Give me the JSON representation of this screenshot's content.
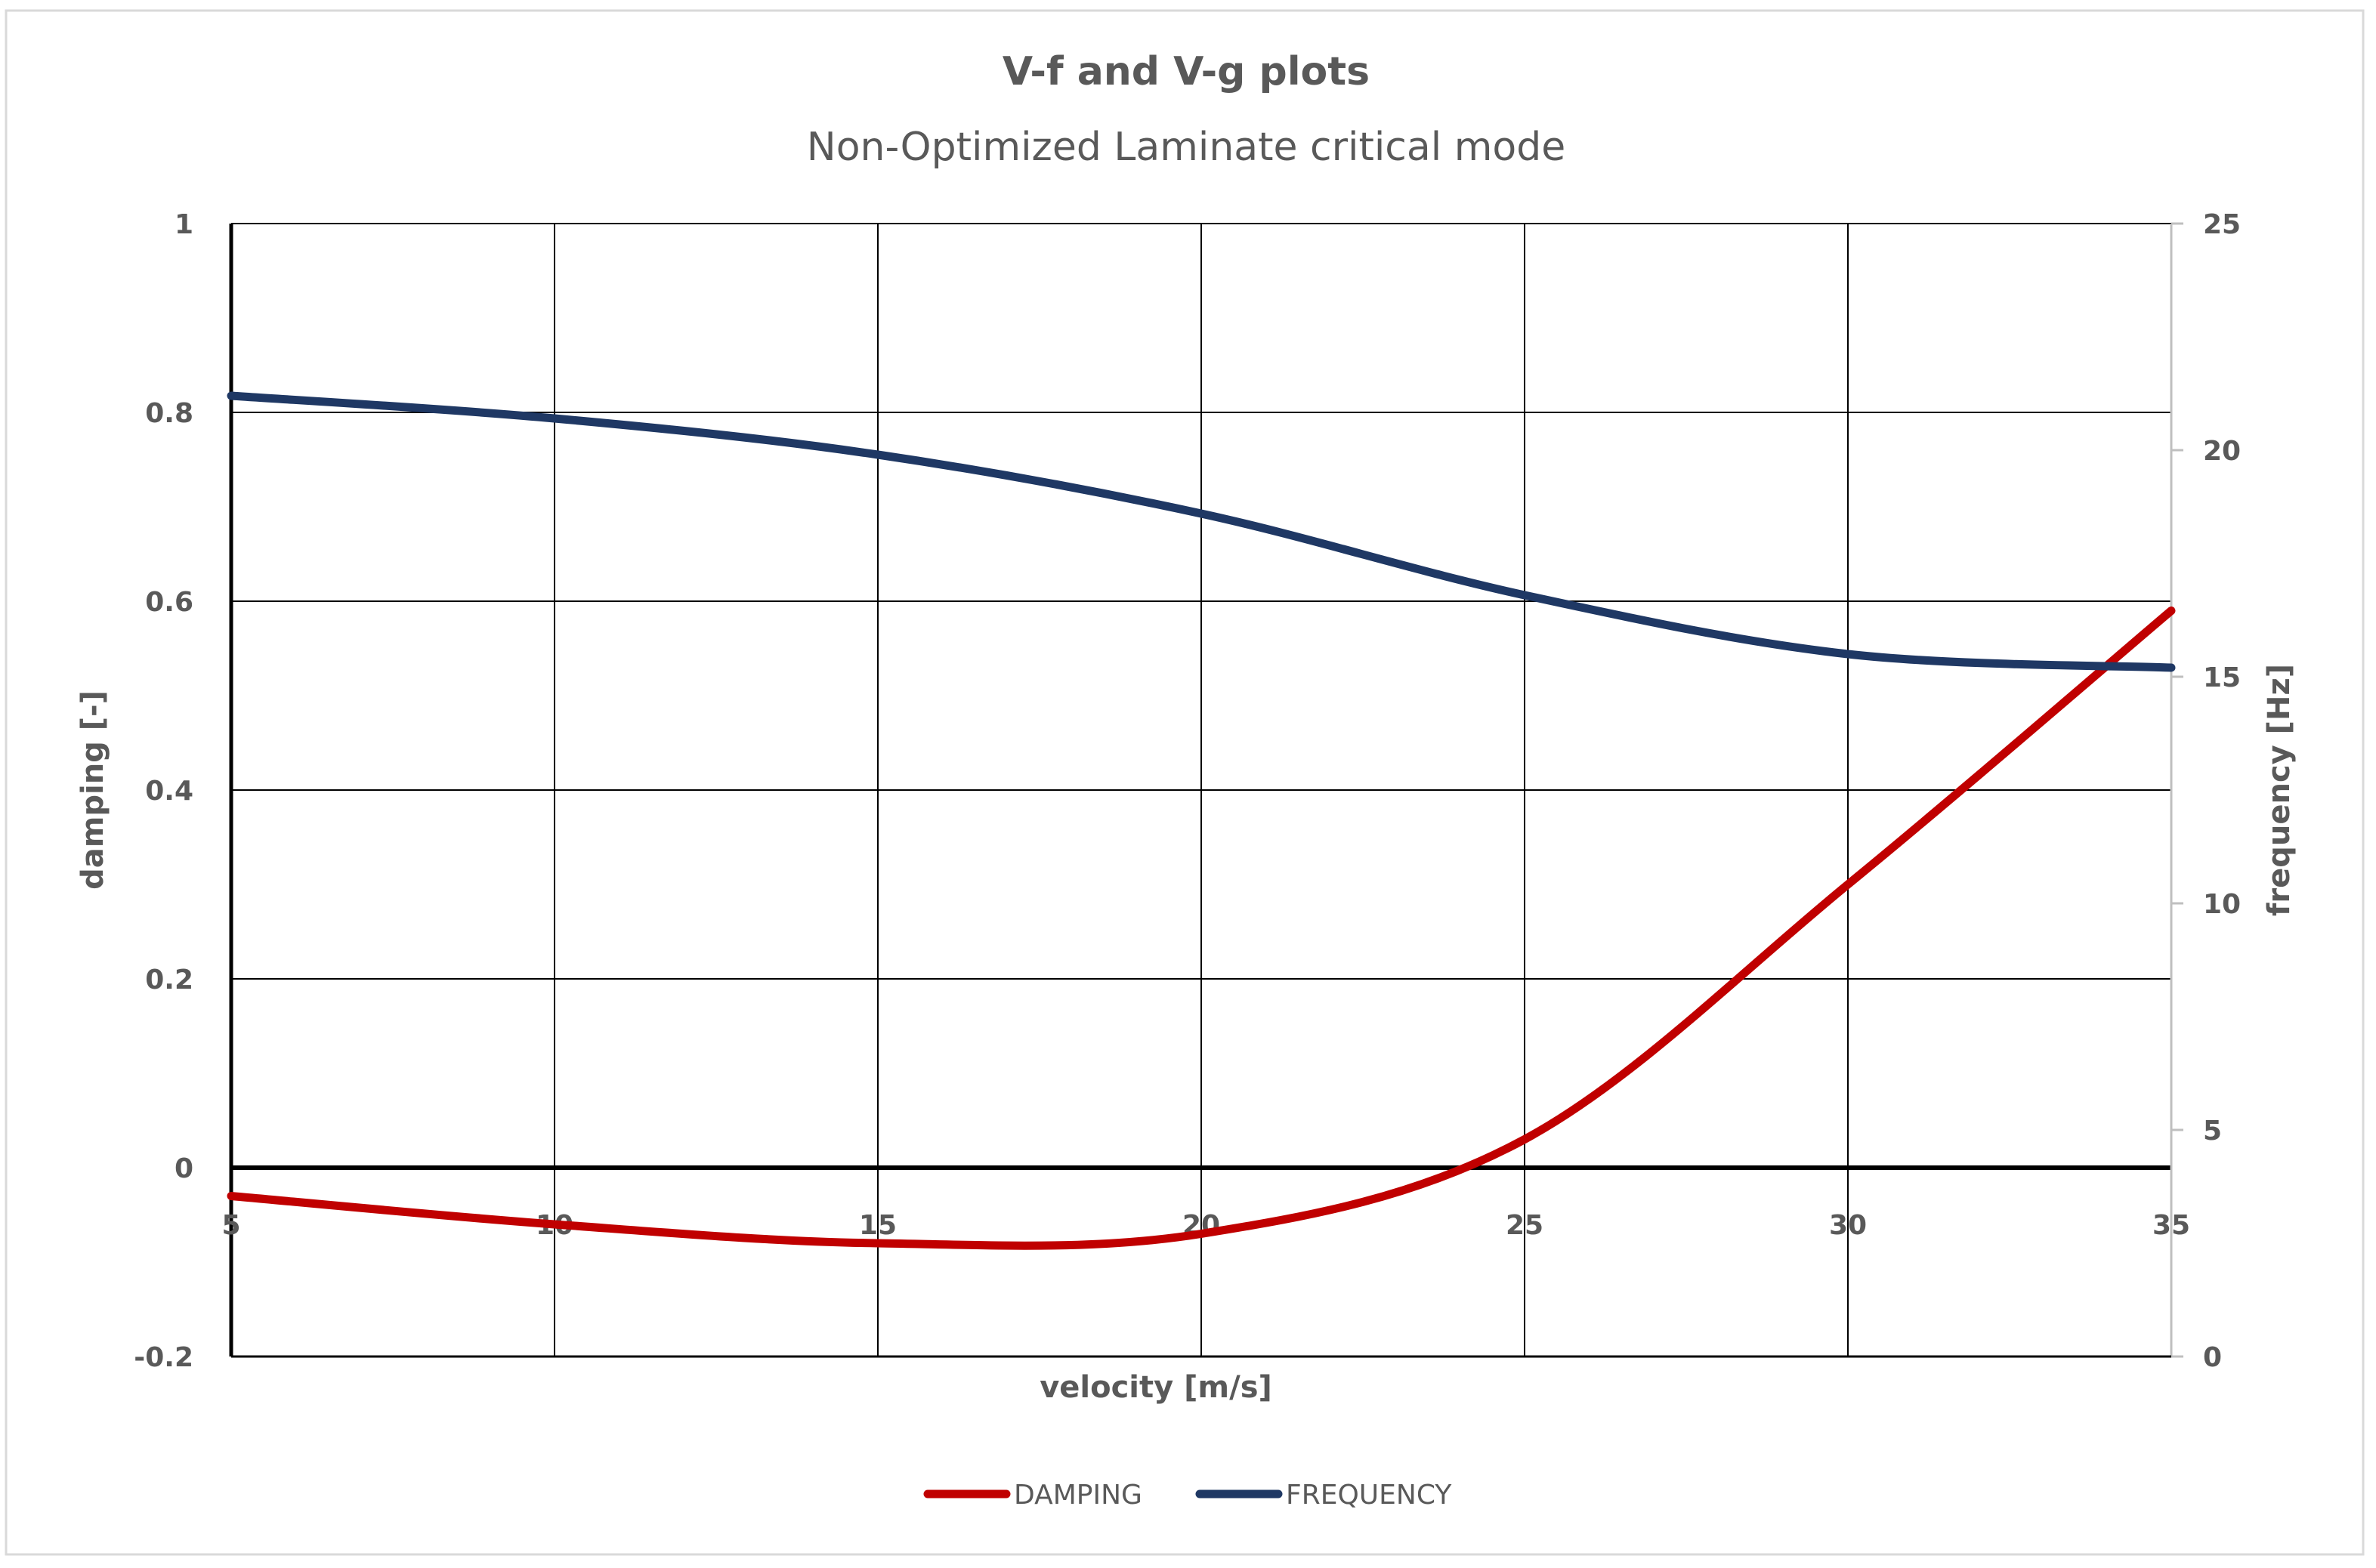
{
  "chart_data": {
    "type": "line",
    "title": "V-f and V-g plots",
    "subtitle": "Non-Optimized Laminate critical mode",
    "xlabel": "velocity [m/s]",
    "ylabel": "damping [-]",
    "y2label": "frequency [Hz]",
    "xlim": [
      5,
      35
    ],
    "ylim": [
      -0.2,
      1
    ],
    "y2lim": [
      0,
      25
    ],
    "x_ticks": [
      "5",
      "10",
      "15",
      "20",
      "25",
      "30",
      "35"
    ],
    "y_ticks": [
      "-0.2",
      "0",
      "0.2",
      "0.4",
      "0.6",
      "0.8",
      "1"
    ],
    "y2_ticks": [
      "0",
      "5",
      "10",
      "15",
      "20",
      "25"
    ],
    "grid": true,
    "legend_position": "bottom-center",
    "series": [
      {
        "name": "DAMPING",
        "axis": "left",
        "color": "#c00000",
        "x": [
          5,
          10,
          15,
          20,
          25,
          30,
          35
        ],
        "values": [
          -0.03,
          -0.06,
          -0.08,
          -0.07,
          0.03,
          0.3,
          0.59
        ]
      },
      {
        "name": "FREQUENCY",
        "axis": "right",
        "color": "#1f3864",
        "x": [
          5,
          10,
          15,
          20,
          25,
          30,
          35
        ],
        "values": [
          21.2,
          20.7,
          19.9,
          18.6,
          16.8,
          15.5,
          15.2
        ]
      }
    ]
  }
}
